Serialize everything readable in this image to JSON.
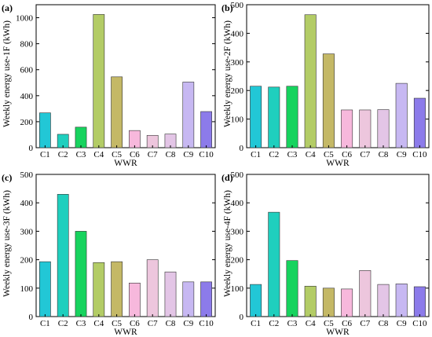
{
  "chart_data": [
    {
      "type": "bar",
      "panel_label": "(a)",
      "ylabel": "Weekly energy use-1F (kWh)",
      "xlabel": "WWR",
      "categories": [
        "C1",
        "C2",
        "C3",
        "C4",
        "C5",
        "C6",
        "C7",
        "C8",
        "C9",
        "C10"
      ],
      "values": [
        268,
        103,
        158,
        1025,
        545,
        132,
        95,
        105,
        505,
        278
      ],
      "ylim": [
        0,
        1100
      ],
      "yticks": [
        "0",
        "200",
        "400",
        "600",
        "800",
        "1000"
      ],
      "ytick_values": [
        0,
        200,
        400,
        600,
        800,
        1000
      ]
    },
    {
      "type": "bar",
      "panel_label": "(b)",
      "ylabel": "Weekly energy use-2F (kWh)",
      "xlabel": "WWR",
      "categories": [
        "C1",
        "C2",
        "C3",
        "C4",
        "C5",
        "C6",
        "C7",
        "C8",
        "C9",
        "C10"
      ],
      "values": [
        215,
        212,
        215,
        465,
        328,
        132,
        132,
        133,
        225,
        173
      ],
      "ylim": [
        0,
        500
      ],
      "yticks": [
        "0",
        "100",
        "200",
        "300",
        "400",
        "500"
      ],
      "ytick_values": [
        0,
        100,
        200,
        300,
        400,
        500
      ]
    },
    {
      "type": "bar",
      "panel_label": "(c)",
      "ylabel": "Weekly energy use-3F (kWh)",
      "xlabel": "WWR",
      "categories": [
        "C1",
        "C2",
        "C3",
        "C4",
        "C5",
        "C6",
        "C7",
        "C8",
        "C9",
        "C10"
      ],
      "values": [
        193,
        430,
        300,
        190,
        193,
        118,
        200,
        157,
        122,
        122
      ],
      "ylim": [
        0,
        500
      ],
      "yticks": [
        "0",
        "100",
        "200",
        "300",
        "400",
        "500"
      ],
      "ytick_values": [
        0,
        100,
        200,
        300,
        400,
        500
      ]
    },
    {
      "type": "bar",
      "panel_label": "(d)",
      "ylabel": "Weekly energy use-4F (kWh)",
      "xlabel": "WWR",
      "categories": [
        "C1",
        "C2",
        "C3",
        "C4",
        "C5",
        "C6",
        "C7",
        "C8",
        "C9",
        "C10"
      ],
      "values": [
        113,
        367,
        197,
        107,
        100,
        97,
        162,
        113,
        115,
        105
      ],
      "ylim": [
        0,
        500
      ],
      "yticks": [
        "0",
        "100",
        "200",
        "300",
        "400",
        "500"
      ],
      "ytick_values": [
        0,
        100,
        200,
        300,
        400,
        500
      ]
    }
  ],
  "colors": {
    "bars": [
      "#22c7d6",
      "#1fcfbe",
      "#17d35e",
      "#b3cc66",
      "#c4b866",
      "#f7b8dc",
      "#edc6dd",
      "#e3c5e6",
      "#c7b8f2",
      "#8c7bea"
    ],
    "edge": "#333333"
  }
}
